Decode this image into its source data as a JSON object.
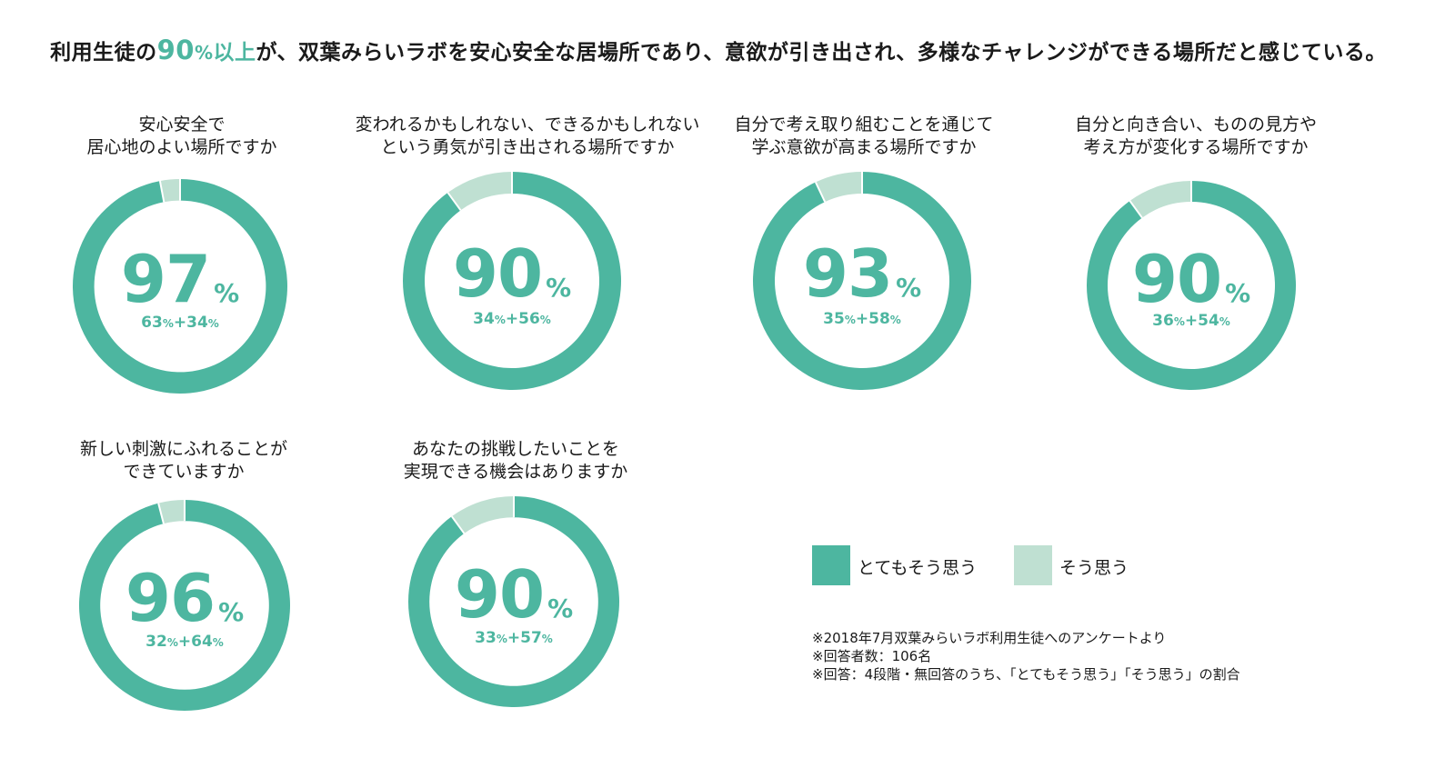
{
  "headline": {
    "prefix": "利用生徒の",
    "num": "90",
    "pct": "%",
    "mid": "以上",
    "suffix": "が、双葉みらいラボを安心安全な居場所であり、意欲が引き出され、多様なチャレンジができる場所だと感じている。"
  },
  "colors": {
    "very_much": "#4db6a0",
    "somewhat": "#bfe0d2",
    "accent": "#4db6a0"
  },
  "legend": {
    "very_much": "とてもそう思う",
    "somewhat": "そう思う"
  },
  "notes": [
    "※2018年7月双葉みらいラボ利用生徒へのアンケートより",
    "※回答者数：106名",
    "※回答：4段階・無回答のうち、「とてもそう思う」「そう思う」の割合"
  ],
  "chart_data": [
    {
      "type": "pie",
      "question_line1": "安心安全で",
      "question_line2": "居心地のよい場所ですか",
      "total": "97",
      "very_much": 63,
      "somewhat": 34,
      "breakdown_a": "63",
      "breakdown_b": "+34",
      "unit": "%"
    },
    {
      "type": "pie",
      "question_line1": "変われるかもしれない、できるかもしれない",
      "question_line2": "という勇気が引き出される場所ですか",
      "total": "90",
      "very_much": 34,
      "somewhat": 56,
      "breakdown_a": "34",
      "breakdown_b": "+56",
      "unit": "%"
    },
    {
      "type": "pie",
      "question_line1": "自分で考え取り組むことを通じて",
      "question_line2": "学ぶ意欲が高まる場所ですか",
      "total": "93",
      "very_much": 35,
      "somewhat": 58,
      "breakdown_a": "35",
      "breakdown_b": "+58",
      "unit": "%"
    },
    {
      "type": "pie",
      "question_line1": "自分と向き合い、ものの見方や",
      "question_line2": "考え方が変化する場所ですか",
      "total": "90",
      "very_much": 36,
      "somewhat": 54,
      "breakdown_a": "36",
      "breakdown_b": "+54",
      "unit": "%"
    },
    {
      "type": "pie",
      "question_line1": "新しい刺激にふれることが",
      "question_line2": "できていますか",
      "total": "96",
      "very_much": 32,
      "somewhat": 64,
      "breakdown_a": "32",
      "breakdown_b": "+64",
      "unit": "%"
    },
    {
      "type": "pie",
      "question_line1": "あなたの挑戦したいことを",
      "question_line2": "実現できる機会はありますか",
      "total": "90",
      "very_much": 33,
      "somewhat": 57,
      "breakdown_a": "33",
      "breakdown_b": "+57",
      "unit": "%"
    }
  ]
}
